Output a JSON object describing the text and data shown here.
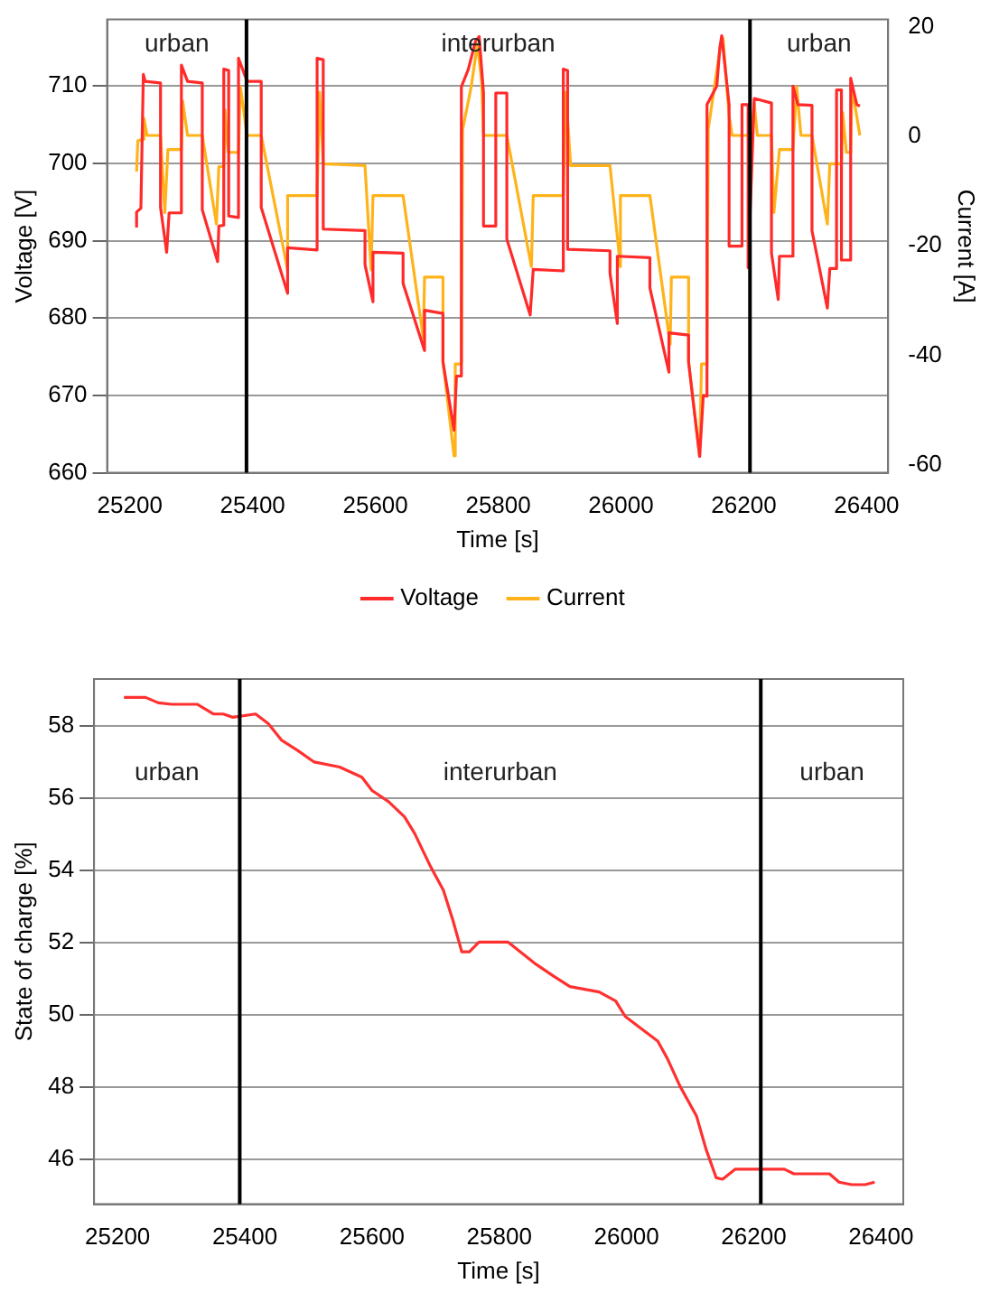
{
  "chart_data": [
    {
      "type": "line",
      "xlabel": "Time [s]",
      "ylabel": "Voltage [V]",
      "y2label": "Current [A]",
      "xlim": [
        25163,
        26435
      ],
      "xticks": [
        25200,
        25400,
        25600,
        25800,
        26000,
        26200,
        26400
      ],
      "ylim": [
        660,
        718.6
      ],
      "yticks": [
        660,
        670,
        680,
        690,
        700,
        710
      ],
      "y2lim": [
        -61.5,
        21.4
      ],
      "y2ticks": [
        -60,
        -40,
        -20,
        0,
        20
      ],
      "grid": "y",
      "legend": "bottom",
      "marker": "none",
      "line_style": "solid",
      "ref_lines": [
        {
          "axis": "x",
          "value": 25390,
          "color": "#000000"
        },
        {
          "axis": "x",
          "value": 26210,
          "color": "#000000"
        }
      ],
      "annotations": [
        "urban",
        "interurban",
        "urban"
      ],
      "series": [
        {
          "name": "Voltage",
          "color": "#ff2a2a",
          "x": [
            25211,
            25211,
            25218,
            25222,
            25225,
            25250,
            25250,
            25260,
            25264,
            25284,
            25284,
            25294,
            25318,
            25318,
            25343,
            25345,
            25353,
            25353,
            25361,
            25361,
            25377,
            25377,
            25391,
            25414,
            25414,
            25457,
            25457,
            25505,
            25505,
            25515,
            25515,
            25583,
            25583,
            25596,
            25596,
            25645,
            25645,
            25680,
            25680,
            25710,
            25710,
            25728,
            25732,
            25740,
            25740,
            25751,
            25763,
            25769,
            25776,
            25776,
            25796,
            25796,
            25814,
            25814,
            25852,
            25857,
            25906,
            25906,
            25913,
            25913,
            25982,
            25982,
            25994,
            25994,
            26047,
            26047,
            26078,
            26078,
            26110,
            26110,
            26128,
            26134,
            26140,
            26140,
            26156,
            26161,
            26164,
            26176,
            26176,
            26197,
            26197,
            26207,
            26207,
            26217,
            26245,
            26245,
            26256,
            26258,
            26280,
            26280,
            26288,
            26311,
            26311,
            26336,
            26340,
            26351,
            26351,
            26359,
            26359,
            26374,
            26374,
            26384,
            26389
          ],
          "values": [
            691.7,
            693.7,
            694.2,
            711.5,
            710.6,
            710.4,
            694.3,
            688.5,
            693.6,
            693.6,
            712.7,
            710.6,
            710.4,
            694,
            687.3,
            691.9,
            692,
            712.2,
            712,
            693.2,
            693,
            713.6,
            710.6,
            710.6,
            694.3,
            683.2,
            689.1,
            688.8,
            713.6,
            713.4,
            691.5,
            691.3,
            686.9,
            682.1,
            688.5,
            688.4,
            684.5,
            675.8,
            681,
            680.6,
            674.3,
            665.5,
            672.5,
            672.5,
            709.9,
            712.1,
            715.8,
            716.4,
            709.1,
            691.9,
            691.9,
            709.1,
            709.1,
            690.2,
            680.4,
            686.3,
            686.1,
            712.2,
            712,
            688.9,
            688.7,
            685.8,
            679.3,
            688,
            687.8,
            683.9,
            673,
            678.1,
            677.8,
            674.3,
            662.1,
            670,
            669.9,
            707.6,
            710,
            715,
            716.5,
            707.6,
            689.3,
            689.3,
            707.6,
            707.6,
            686.5,
            708.4,
            707.8,
            688.4,
            682.4,
            688,
            688,
            710,
            707.6,
            707.5,
            691.3,
            681.3,
            686.4,
            686.4,
            709.5,
            709.5,
            687.5,
            687.5,
            711,
            707.6,
            707.4
          ]
        },
        {
          "name": "Current",
          "color": "#ffb31a",
          "axis": "y2",
          "x": [
            25211,
            25213,
            25221,
            25223,
            25228,
            25250,
            25257,
            25262,
            25284,
            25286,
            25294,
            25318,
            25341,
            25345,
            25353,
            25355,
            25360,
            25377,
            25380,
            25391,
            25414,
            25457,
            25457,
            25505,
            25509,
            25515,
            25583,
            25593,
            25596,
            25645,
            25678,
            25680,
            25710,
            25710,
            25728,
            25730,
            25740,
            25742,
            25756,
            25766,
            25773,
            25776,
            25814,
            25854,
            25857,
            25906,
            25910,
            25918,
            25982,
            25999,
            25999,
            26047,
            26080,
            26082,
            26110,
            26110,
            26128,
            26131,
            26140,
            26142,
            26161,
            26166,
            26176,
            26181,
            26212,
            26217,
            26222,
            26245,
            26249,
            26258,
            26280,
            26286,
            26293,
            26311,
            26336,
            26340,
            26359,
            26361,
            26367,
            26374,
            26376,
            26389
          ],
          "values": [
            -6.4,
            -0.8,
            -0.5,
            3.3,
            0.2,
            0.2,
            -13.9,
            -2.4,
            -2.4,
            6.5,
            0.2,
            0.2,
            -16,
            -5.5,
            -5.5,
            4.9,
            -2.9,
            -2.9,
            9.1,
            0.2,
            0.2,
            -24.4,
            -10.8,
            -10.8,
            8.1,
            -5,
            -5.3,
            -24.4,
            -10.8,
            -10.8,
            -36.9,
            -25.7,
            -25.7,
            -41.1,
            -58.4,
            -41.6,
            -41.6,
            1.3,
            9.1,
            16.9,
            10.1,
            0.2,
            0.2,
            -23.8,
            -10.8,
            -10.8,
            8.1,
            -5.3,
            -5.3,
            -23.8,
            -10.8,
            -10.8,
            -38,
            -25.7,
            -25.7,
            -41.1,
            -58.4,
            -41.6,
            -41.6,
            1.3,
            15.9,
            18,
            3.8,
            0.2,
            0.2,
            6,
            0.2,
            0.2,
            -13.9,
            -2.4,
            -2.4,
            9.1,
            0.2,
            0.2,
            -16,
            -5,
            -5,
            4.4,
            -2.9,
            -2.9,
            9.1,
            0.2
          ]
        }
      ]
    },
    {
      "type": "line",
      "xlabel": "Time [s]",
      "ylabel": "State of charge [%]",
      "xlim": [
        25163,
        26435
      ],
      "xticks": [
        25200,
        25400,
        25600,
        25800,
        26000,
        26200,
        26400
      ],
      "ylim": [
        44.75,
        59.3
      ],
      "yticks": [
        46,
        48,
        50,
        52,
        54,
        56,
        58
      ],
      "grid": "y",
      "marker": "none",
      "line_style": "solid",
      "ref_lines": [
        {
          "axis": "x",
          "value": 25392,
          "color": "#000000"
        },
        {
          "axis": "x",
          "value": 26211,
          "color": "#000000"
        }
      ],
      "annotations": [
        "urban",
        "interurban",
        "urban"
      ],
      "series": [
        {
          "color": "#ff3030",
          "x": [
            25210,
            25244,
            25264,
            25285,
            25325,
            25351,
            25366,
            25381,
            25417,
            25437,
            25458,
            25483,
            25509,
            25549,
            25584,
            25600,
            25626,
            25651,
            25667,
            25692,
            25712,
            25727,
            25741,
            25753,
            25768,
            25814,
            25855,
            25886,
            25911,
            25957,
            25983,
            25998,
            26018,
            26049,
            26064,
            26084,
            26110,
            26125,
            26141,
            26151,
            26171,
            26202,
            26248,
            26263,
            26319,
            26334,
            26354,
            26375,
            26390
          ],
          "values": [
            58.79,
            58.79,
            58.64,
            58.6,
            58.6,
            58.33,
            58.33,
            58.24,
            58.33,
            58.06,
            57.6,
            57.32,
            57,
            56.86,
            56.58,
            56.21,
            55.9,
            55.48,
            55.02,
            54.1,
            53.45,
            52.62,
            51.74,
            51.74,
            52.01,
            52.01,
            51.43,
            51.06,
            50.78,
            50.63,
            50.38,
            49.95,
            49.68,
            49.27,
            48.79,
            48.02,
            47.19,
            46.27,
            45.48,
            45.44,
            45.72,
            45.72,
            45.72,
            45.59,
            45.59,
            45.36,
            45.29,
            45.29,
            45.36
          ]
        }
      ]
    }
  ]
}
